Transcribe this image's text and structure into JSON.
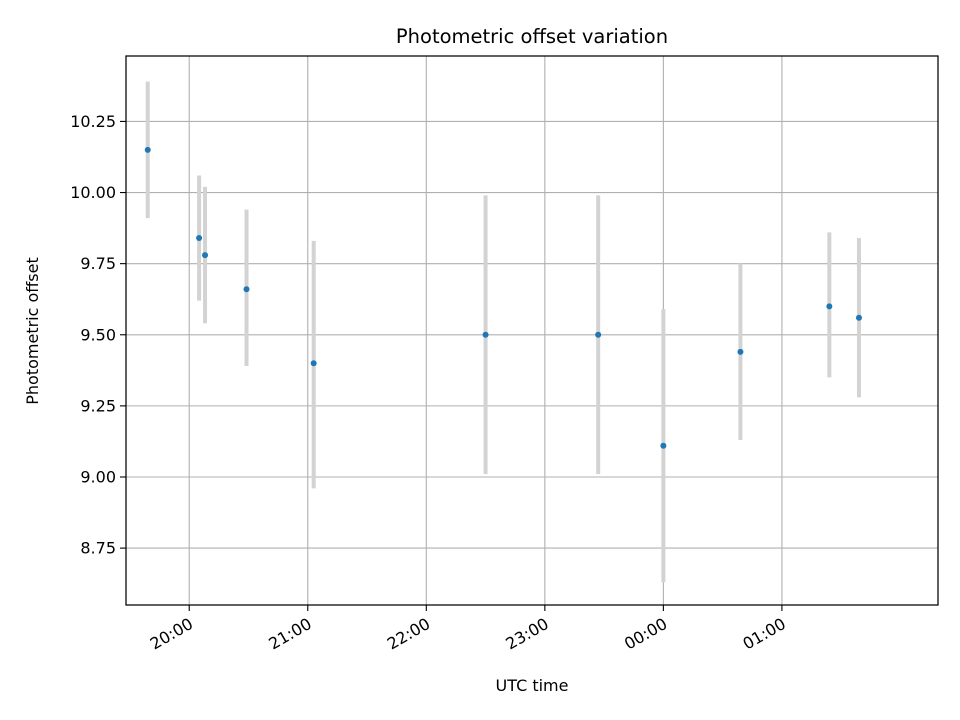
{
  "chart_data": {
    "type": "scatter",
    "title": "Photometric offset variation",
    "xlabel": "UTC time",
    "ylabel": "Photometric offset",
    "x_axis_type": "time",
    "xlim": [
      "19:28",
      "02:19"
    ],
    "ylim": [
      8.55,
      10.48
    ],
    "x_ticks": [
      {
        "time": "20:00",
        "label": "20:00"
      },
      {
        "time": "21:00",
        "label": "21:00"
      },
      {
        "time": "22:00",
        "label": "22:00"
      },
      {
        "time": "23:00",
        "label": "23:00"
      },
      {
        "time": "00:00",
        "label": "00:00"
      },
      {
        "time": "01:00",
        "label": "01:00"
      }
    ],
    "y_ticks": [
      8.75,
      9.0,
      9.25,
      9.5,
      9.75,
      10.0,
      10.25
    ],
    "y_tick_labels": [
      "8.75",
      "9.00",
      "9.25",
      "9.50",
      "9.75",
      "10.00",
      "10.25"
    ],
    "grid": true,
    "marker_color": "#1f77b4",
    "errorbar_color": "#d3d3d3",
    "points": [
      {
        "time": "19:39",
        "y": 10.15,
        "ylow": 9.91,
        "yhigh": 10.39
      },
      {
        "time": "20:05",
        "y": 9.84,
        "ylow": 9.62,
        "yhigh": 10.06
      },
      {
        "time": "20:08",
        "y": 9.78,
        "ylow": 9.54,
        "yhigh": 10.02
      },
      {
        "time": "20:29",
        "y": 9.66,
        "ylow": 9.39,
        "yhigh": 9.94
      },
      {
        "time": "21:03",
        "y": 9.4,
        "ylow": 8.96,
        "yhigh": 9.83
      },
      {
        "time": "22:30",
        "y": 9.5,
        "ylow": 9.01,
        "yhigh": 9.99
      },
      {
        "time": "23:27",
        "y": 9.5,
        "ylow": 9.01,
        "yhigh": 9.99
      },
      {
        "time": "00:00",
        "y": 9.11,
        "ylow": 8.63,
        "yhigh": 9.59
      },
      {
        "time": "00:39",
        "y": 9.44,
        "ylow": 9.13,
        "yhigh": 9.75
      },
      {
        "time": "01:24",
        "y": 9.6,
        "ylow": 9.35,
        "yhigh": 9.86
      },
      {
        "time": "01:39",
        "y": 9.56,
        "ylow": 9.28,
        "yhigh": 9.84
      }
    ]
  }
}
